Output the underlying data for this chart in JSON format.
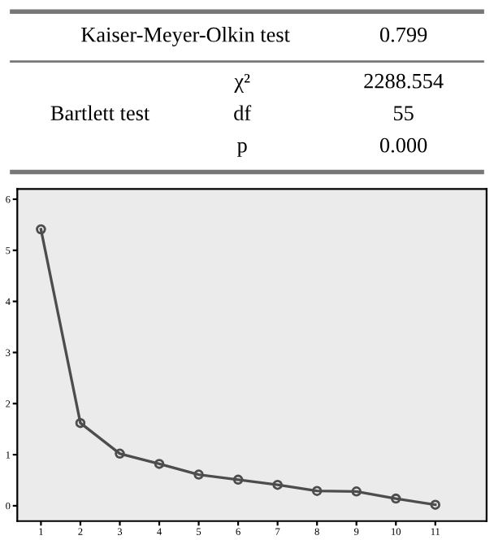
{
  "chart_data": [
    {
      "type": "other",
      "annotations": [
        "Kaiser-Meyer-Olkin test",
        "0.799",
        "Bartlett test",
        "χ²",
        "2288.554",
        "df",
        "55",
        "p",
        "0.000"
      ]
    },
    {
      "type": "line",
      "categories": [
        "1",
        "2",
        "3",
        "4",
        "5",
        "6",
        "7",
        "8",
        "9",
        "10",
        "11"
      ],
      "series": [
        {
          "color": "#4d4d4d",
          "values": [
            5.41,
            1.62,
            1.02,
            0.82,
            0.61,
            0.51,
            0.41,
            0.29,
            0.28,
            0.14,
            0.02
          ]
        }
      ],
      "ylim": [
        -0.3,
        6.2
      ],
      "yticks": [
        0,
        1,
        2,
        3,
        4,
        5,
        6
      ],
      "grid": false,
      "marker": "circle",
      "line_style": "solid",
      "legend": false
    }
  ]
}
